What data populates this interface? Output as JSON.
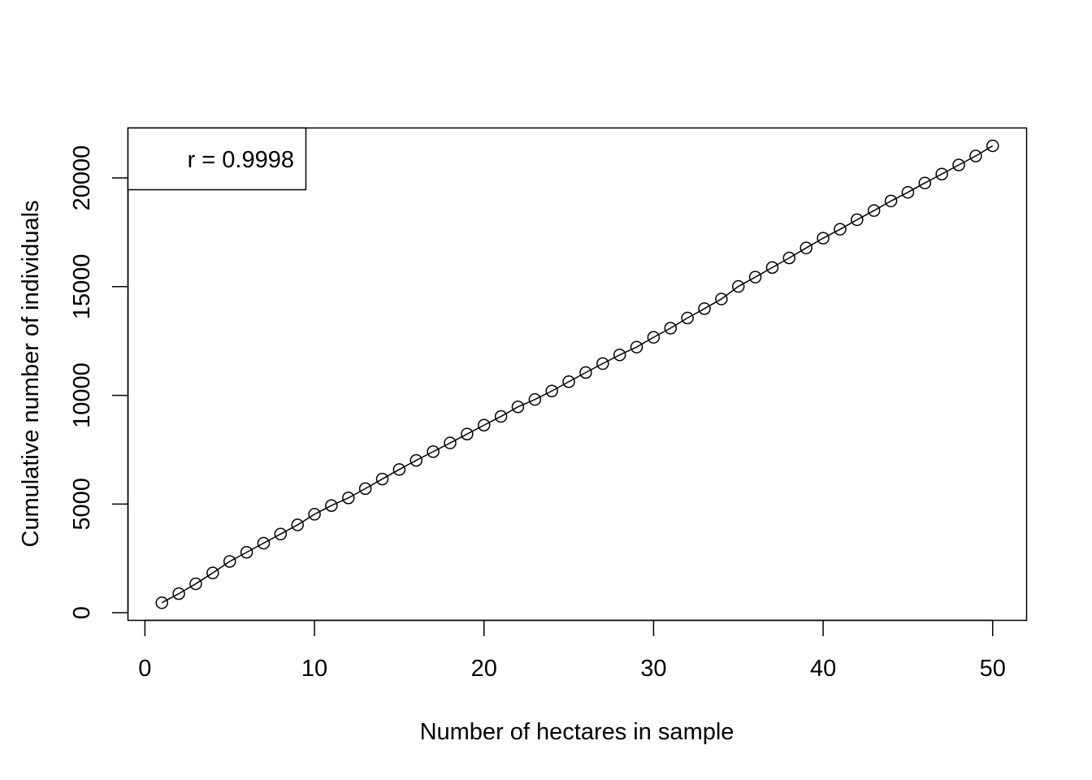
{
  "chart_data": {
    "type": "scatter",
    "title": "",
    "xlabel": "Number of hectares in sample",
    "ylabel": "Cumulative number of individuals",
    "xlim": [
      -1,
      52
    ],
    "ylim": [
      -350,
      22300
    ],
    "x_ticks": [
      0,
      10,
      20,
      30,
      40,
      50
    ],
    "y_ticks": [
      0,
      5000,
      10000,
      15000,
      20000
    ],
    "x_tick_labels": [
      "0",
      "10",
      "20",
      "30",
      "40",
      "50"
    ],
    "y_tick_labels": [
      "0",
      "5000",
      "10000",
      "15000",
      "20000"
    ],
    "grid": false,
    "legend": {
      "position": "top-left",
      "text": "r = 0.9998"
    },
    "series": [
      {
        "marker": "open-circle",
        "line": true,
        "x": [
          1,
          2,
          3,
          4,
          5,
          6,
          7,
          8,
          9,
          10,
          11,
          12,
          13,
          14,
          15,
          16,
          17,
          18,
          19,
          20,
          21,
          22,
          23,
          24,
          25,
          26,
          27,
          28,
          29,
          30,
          31,
          32,
          33,
          34,
          35,
          36,
          37,
          38,
          39,
          40,
          41,
          42,
          43,
          44,
          45,
          46,
          47,
          48,
          49,
          50
        ],
        "y": [
          460,
          880,
          1330,
          1830,
          2360,
          2780,
          3200,
          3620,
          4040,
          4530,
          4930,
          5280,
          5710,
          6150,
          6590,
          7010,
          7410,
          7810,
          8220,
          8630,
          9030,
          9470,
          9810,
          10200,
          10630,
          11050,
          11460,
          11860,
          12220,
          12670,
          13090,
          13560,
          13990,
          14430,
          15010,
          15440,
          15880,
          16320,
          16780,
          17230,
          17640,
          18080,
          18500,
          18940,
          19340,
          19770,
          20180,
          20600,
          21010,
          21480
        ]
      }
    ]
  }
}
